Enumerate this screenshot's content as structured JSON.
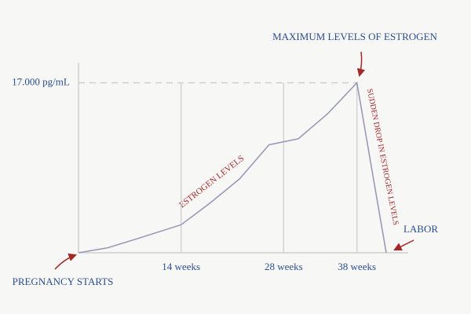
{
  "chart_data": {
    "type": "line",
    "x": [
      0,
      4,
      8,
      14,
      18,
      22,
      26,
      30,
      34,
      38,
      42
    ],
    "series": [
      {
        "name": "ESTROGEN LEVELS",
        "color": "#9a9ab8",
        "values": [
          0,
          500,
          1400,
          2800,
          5000,
          7400,
          10800,
          11400,
          13900,
          17000,
          0
        ]
      }
    ],
    "xlim": [
      0,
      45
    ],
    "ylim": [
      0,
      19000
    ],
    "xticks": [
      {
        "value": 14,
        "label": "14 weeks"
      },
      {
        "value": 28,
        "label": "28 weeks"
      },
      {
        "value": 38,
        "label": "38 weeks"
      }
    ],
    "yticks": [
      {
        "value": 17000,
        "label": "17.000 pg/mL"
      }
    ],
    "annotations": [
      "MAXIMUM LEVELS OF ESTROGEN",
      "LABOR",
      "PREGNANCY STARTS",
      "SUDDEN DROP IN ESTROGEN LEVELS"
    ],
    "grid": true
  }
}
